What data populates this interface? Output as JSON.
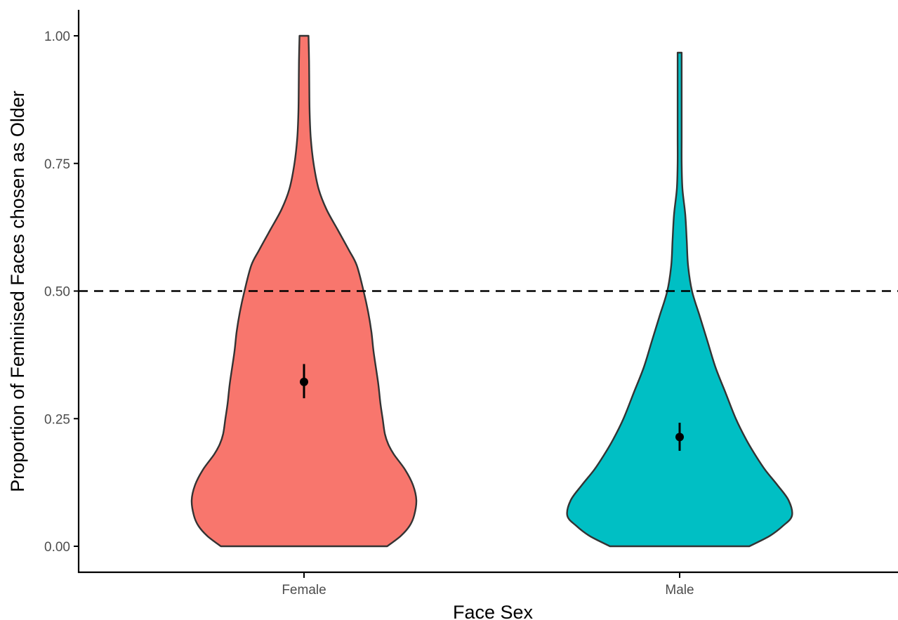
{
  "chart_data": {
    "type": "violin",
    "title": "",
    "xlabel": "Face Sex",
    "ylabel": "Proportion of Feminised Faces chosen as Older",
    "ylim": [
      -0.05,
      1.05
    ],
    "y_ticks": [
      0.0,
      0.25,
      0.5,
      0.75,
      1.0
    ],
    "y_tick_labels": [
      "0.00",
      "0.25",
      "0.50",
      "0.75",
      "1.00"
    ],
    "categories": [
      "Female",
      "Male"
    ],
    "grid": false,
    "legend": "none",
    "reference_line": {
      "y": 0.5,
      "style": "dashed",
      "color": "#000000"
    },
    "series": [
      {
        "category": "Female",
        "fill": "#F8766D",
        "range": [
          0.0,
          1.0
        ],
        "mean": 0.322,
        "ci": [
          0.29,
          0.357
        ],
        "density_profile": [
          [
            0.0,
            0.74
          ],
          [
            0.02,
            0.86
          ],
          [
            0.04,
            0.94
          ],
          [
            0.06,
            0.98
          ],
          [
            0.09,
            1.0
          ],
          [
            0.12,
            0.97
          ],
          [
            0.15,
            0.9
          ],
          [
            0.18,
            0.8
          ],
          [
            0.2,
            0.75
          ],
          [
            0.22,
            0.72
          ],
          [
            0.25,
            0.7
          ],
          [
            0.28,
            0.68
          ],
          [
            0.32,
            0.66
          ],
          [
            0.38,
            0.62
          ],
          [
            0.42,
            0.6
          ],
          [
            0.46,
            0.57
          ],
          [
            0.5,
            0.53
          ],
          [
            0.55,
            0.47
          ],
          [
            0.58,
            0.4
          ],
          [
            0.62,
            0.3
          ],
          [
            0.66,
            0.2
          ],
          [
            0.7,
            0.13
          ],
          [
            0.75,
            0.085
          ],
          [
            0.8,
            0.06
          ],
          [
            0.85,
            0.05
          ],
          [
            0.9,
            0.047
          ],
          [
            0.95,
            0.045
          ],
          [
            1.0,
            0.04
          ]
        ]
      },
      {
        "category": "Male",
        "fill": "#00BFC4",
        "range": [
          0.0,
          0.967
        ],
        "mean": 0.214,
        "ci": [
          0.187,
          0.242
        ],
        "density_profile": [
          [
            0.0,
            0.62
          ],
          [
            0.02,
            0.8
          ],
          [
            0.04,
            0.92
          ],
          [
            0.06,
            1.0
          ],
          [
            0.09,
            0.97
          ],
          [
            0.12,
            0.87
          ],
          [
            0.15,
            0.76
          ],
          [
            0.18,
            0.67
          ],
          [
            0.21,
            0.59
          ],
          [
            0.25,
            0.5
          ],
          [
            0.3,
            0.41
          ],
          [
            0.35,
            0.32
          ],
          [
            0.4,
            0.25
          ],
          [
            0.45,
            0.18
          ],
          [
            0.5,
            0.11
          ],
          [
            0.55,
            0.075
          ],
          [
            0.6,
            0.063
          ],
          [
            0.65,
            0.05
          ],
          [
            0.7,
            0.025
          ],
          [
            0.75,
            0.018
          ],
          [
            0.8,
            0.018
          ],
          [
            0.85,
            0.018
          ],
          [
            0.9,
            0.018
          ],
          [
            0.967,
            0.018
          ]
        ]
      }
    ]
  }
}
